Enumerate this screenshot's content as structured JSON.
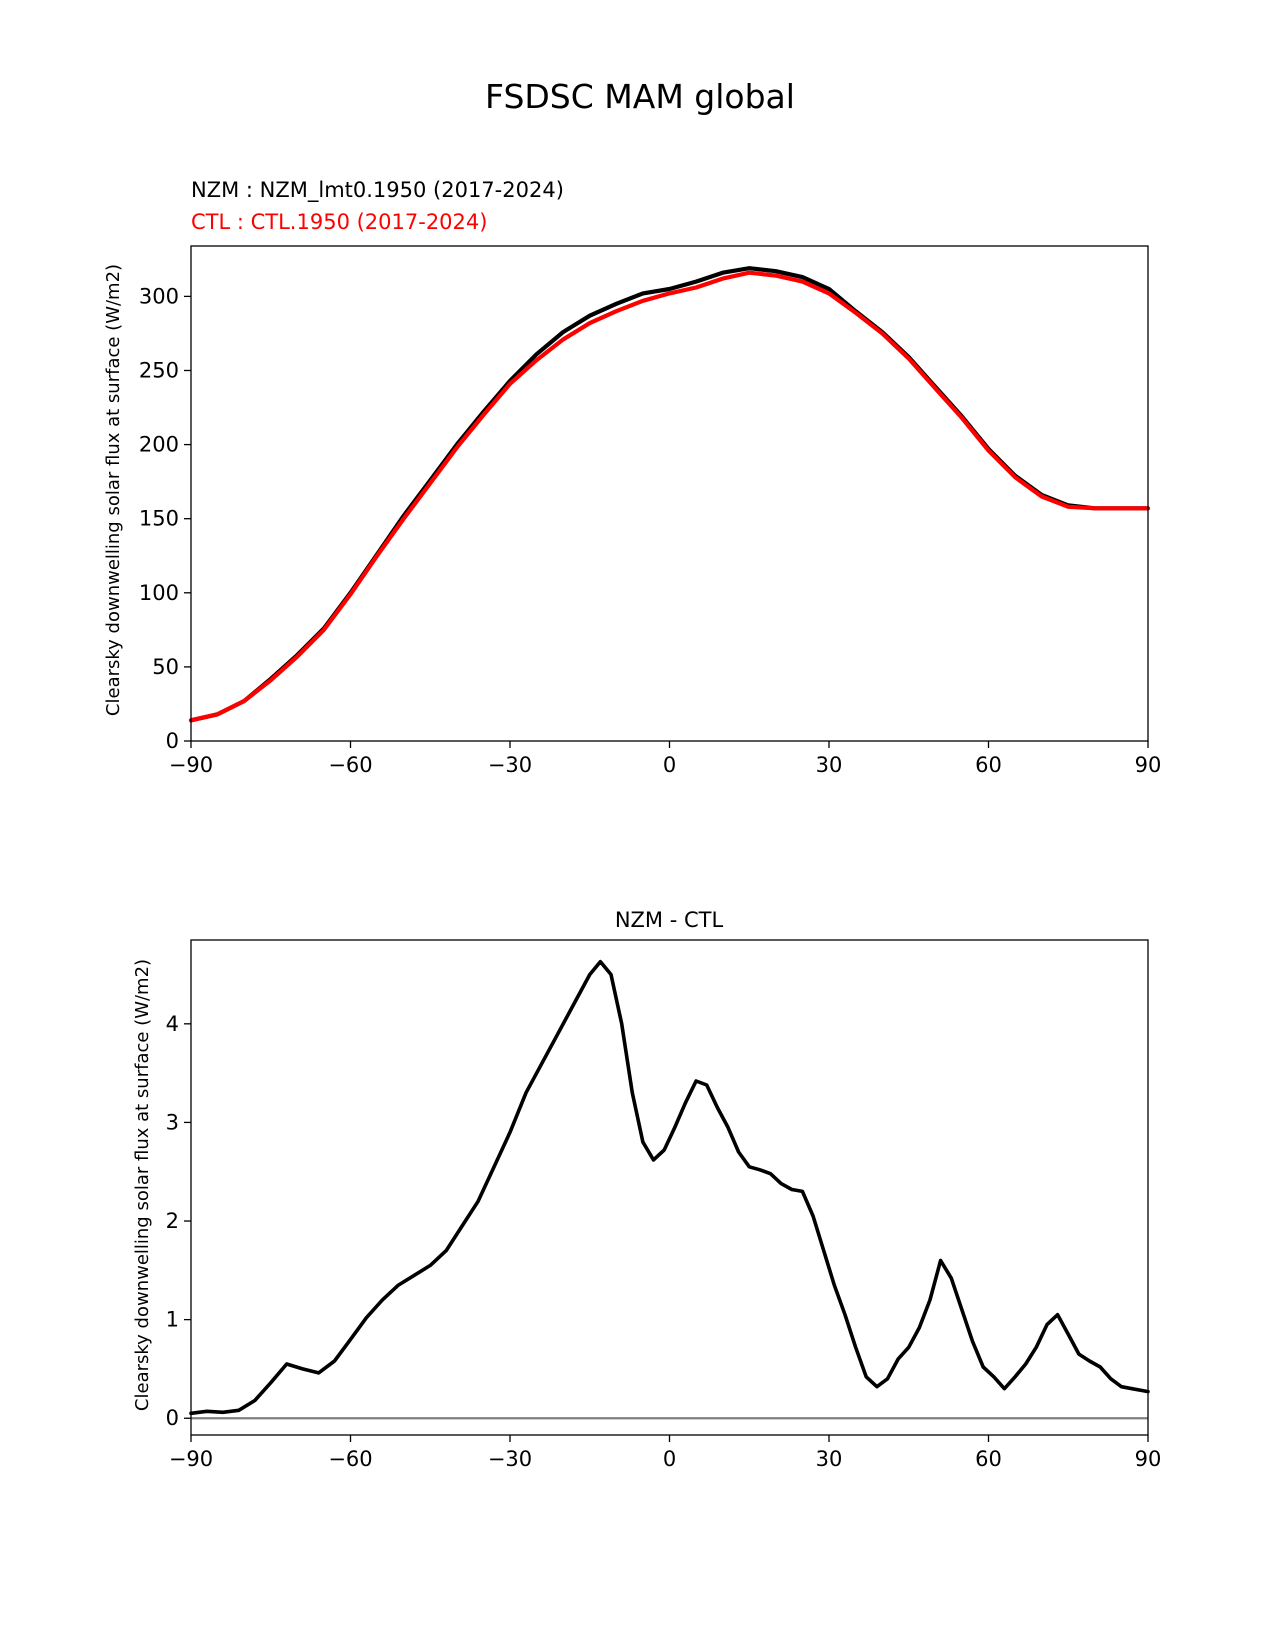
{
  "figure": {
    "suptitle": "FSDSC MAM global"
  },
  "chart_data": [
    {
      "type": "line",
      "legend_text": [
        {
          "text": "NZM  : NZM_lmt0.1950 (2017-2024)",
          "color": "#000000"
        },
        {
          "text": "CTL : CTL.1950 (2017-2024)",
          "color": "#ff0000"
        }
      ],
      "title": "",
      "xlabel": "",
      "ylabel": "Clearsky downwelling solar flux at surface (W/m2)",
      "xlim": [
        -90,
        90
      ],
      "ylim": [
        0,
        334
      ],
      "xticks": [
        "−90",
        "−60",
        "−30",
        "0",
        "30",
        "60",
        "90"
      ],
      "yticks": [
        "0",
        "50",
        "100",
        "150",
        "200",
        "250",
        "300"
      ],
      "grid": false,
      "x": [
        -90,
        -85,
        -80,
        -75,
        -70,
        -65,
        -60,
        -55,
        -50,
        -45,
        -40,
        -35,
        -30,
        -25,
        -20,
        -15,
        -10,
        -5,
        0,
        5,
        10,
        15,
        20,
        25,
        30,
        35,
        40,
        45,
        50,
        55,
        60,
        65,
        70,
        75,
        80,
        85,
        90
      ],
      "series": [
        {
          "name": "NZM",
          "color": "#000000",
          "values": [
            14,
            18,
            27,
            42,
            58,
            76,
            100,
            126,
            152,
            176,
            200,
            222,
            243,
            261,
            276,
            287,
            295,
            302,
            305,
            310,
            316,
            319,
            317,
            313,
            305,
            290,
            276,
            259,
            239,
            219,
            197,
            179,
            166,
            159,
            157,
            157,
            157
          ]
        },
        {
          "name": "CTL",
          "color": "#ff0000",
          "values": [
            14,
            18,
            27,
            41,
            57,
            75,
            99,
            125,
            150,
            174,
            198,
            220,
            241,
            257,
            271,
            282,
            290,
            297,
            302,
            306,
            312,
            316,
            314,
            310,
            302,
            289,
            275,
            258,
            238,
            218,
            196,
            178,
            165,
            158,
            157,
            157,
            157
          ]
        }
      ]
    },
    {
      "type": "line",
      "title": "NZM - CTL",
      "xlabel": "",
      "ylabel": "Clearsky downwelling solar flux at surface (W/m2)",
      "xlim": [
        -90,
        90
      ],
      "ylim": [
        -0.17,
        4.85
      ],
      "xticks": [
        "−90",
        "−60",
        "−30",
        "0",
        "30",
        "60",
        "90"
      ],
      "yticks": [
        "0",
        "1",
        "2",
        "3",
        "4"
      ],
      "grid": false,
      "zero_line_color": "#808080",
      "x": [
        -90,
        -87,
        -84,
        -81,
        -78,
        -75,
        -72,
        -69,
        -66,
        -63,
        -60,
        -57,
        -54,
        -51,
        -48,
        -45,
        -42,
        -39,
        -36,
        -33,
        -30,
        -27,
        -24,
        -21,
        -18,
        -15,
        -13,
        -11,
        -9,
        -7,
        -5,
        -3,
        -1,
        1,
        3,
        5,
        7,
        9,
        11,
        13,
        15,
        17,
        19,
        21,
        23,
        25,
        27,
        29,
        31,
        33,
        35,
        37,
        39,
        41,
        43,
        45,
        47,
        49,
        51,
        53,
        55,
        57,
        59,
        61,
        63,
        65,
        67,
        69,
        71,
        73,
        75,
        77,
        79,
        81,
        83,
        85,
        87,
        89,
        90
      ],
      "series": [
        {
          "name": "NZM - CTL",
          "color": "#000000",
          "values": [
            0.05,
            0.07,
            0.06,
            0.08,
            0.18,
            0.36,
            0.55,
            0.5,
            0.46,
            0.58,
            0.8,
            1.02,
            1.2,
            1.35,
            1.45,
            1.55,
            1.7,
            1.95,
            2.2,
            2.55,
            2.9,
            3.3,
            3.6,
            3.9,
            4.2,
            4.5,
            4.63,
            4.5,
            4.0,
            3.3,
            2.8,
            2.62,
            2.72,
            2.95,
            3.2,
            3.42,
            3.38,
            3.15,
            2.95,
            2.7,
            2.55,
            2.52,
            2.48,
            2.38,
            2.32,
            2.3,
            2.05,
            1.7,
            1.35,
            1.05,
            0.72,
            0.42,
            0.32,
            0.4,
            0.6,
            0.72,
            0.92,
            1.2,
            1.6,
            1.42,
            1.1,
            0.78,
            0.52,
            0.42,
            0.3,
            0.42,
            0.55,
            0.72,
            0.95,
            1.05,
            0.85,
            0.65,
            0.58,
            0.52,
            0.4,
            0.32,
            0.3,
            0.28,
            0.27
          ]
        }
      ]
    }
  ]
}
